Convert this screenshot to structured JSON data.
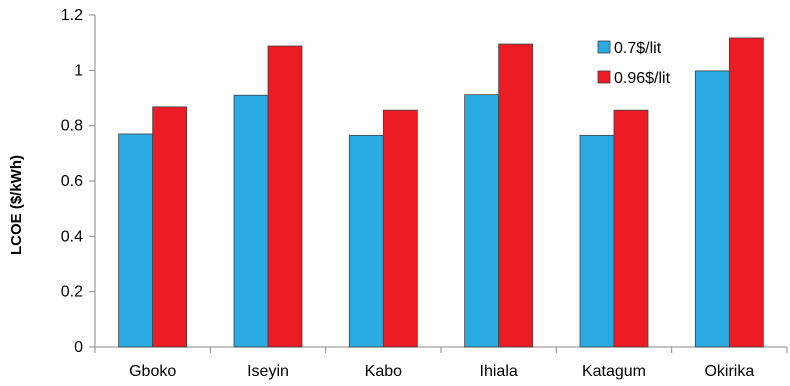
{
  "chart_data": {
    "type": "bar",
    "title": "",
    "xlabel": "",
    "ylabel": "LCOE ($/kWh)",
    "categories": [
      "Gboko",
      "Iseyin",
      "Kabo",
      "Ihiala",
      "Katagum",
      "Okirika"
    ],
    "series": [
      {
        "name": "0.7$/lit",
        "color": "#29abe2",
        "values": [
          0.77,
          0.91,
          0.765,
          0.912,
          0.765,
          0.998
        ]
      },
      {
        "name": "0.96$/lit",
        "color": "#ed1c24",
        "values": [
          0.868,
          1.088,
          0.856,
          1.095,
          0.856,
          1.117
        ]
      }
    ],
    "ylim": [
      0,
      1.2
    ],
    "yticks": [
      "0",
      "0.2",
      "0.4",
      "0.6",
      "0.8",
      "1",
      "1.2"
    ],
    "ytick_values": [
      0,
      0.2,
      0.4,
      0.6,
      0.8,
      1.0,
      1.2
    ],
    "grid": false,
    "legend_position": "top-right"
  }
}
